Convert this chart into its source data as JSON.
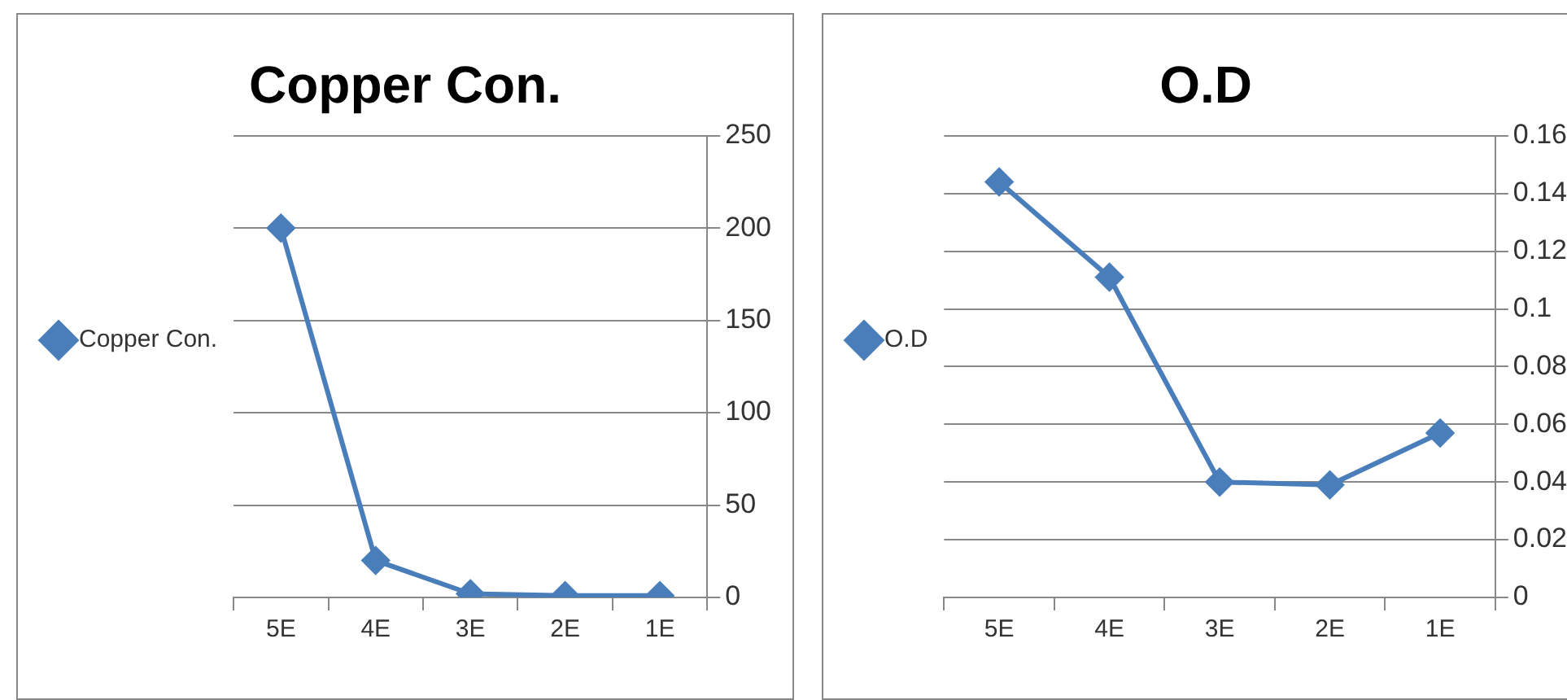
{
  "chart_data": [
    {
      "type": "line",
      "title": "Copper Con.",
      "categories": [
        "5E",
        "4E",
        "3E",
        "2E",
        "1E"
      ],
      "series": [
        {
          "name": "Copper Con.",
          "color": "#4a7ebb",
          "values": [
            200,
            20,
            2,
            1,
            1
          ]
        }
      ],
      "ylim": [
        0,
        250
      ],
      "yticks": [
        0,
        50,
        100,
        150,
        200,
        250
      ],
      "grid": "y",
      "legend": "left",
      "marker": "diamond"
    },
    {
      "type": "line",
      "title": "O.D",
      "categories": [
        "5E",
        "4E",
        "3E",
        "2E",
        "1E"
      ],
      "series": [
        {
          "name": "O.D",
          "color": "#4a7ebb",
          "values": [
            0.144,
            0.111,
            0.04,
            0.039,
            0.057
          ]
        }
      ],
      "ylim": [
        0,
        0.16
      ],
      "yticks": [
        0,
        0.02,
        0.04,
        0.06,
        0.08,
        0.1,
        0.12,
        0.14,
        0.16
      ],
      "grid": "y",
      "legend": "left",
      "marker": "diamond"
    }
  ]
}
